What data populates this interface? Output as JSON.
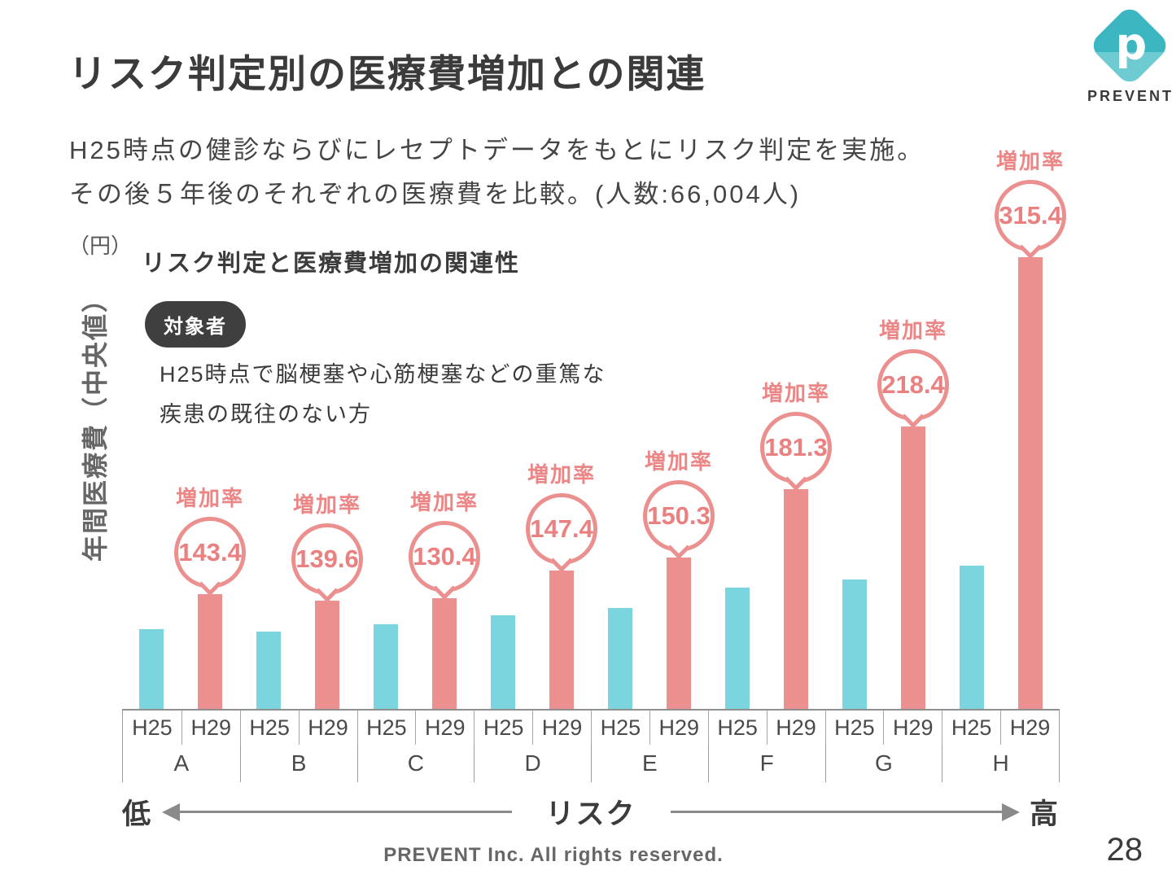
{
  "page": {
    "title": "リスク判定別の医療費増加との関連",
    "subtitle_line1": "H25時点の健診ならびにレセプトデータをもとにリスク判定を実施。",
    "subtitle_line2": "その後５年後のそれぞれの医療費を比較。(人数:66,004人)",
    "footer": "PREVENT Inc. All rights reserved.",
    "page_number": "28"
  },
  "logo": {
    "text": "PREVENT",
    "letter": "p",
    "teal_dark": "#3cb6c0",
    "teal_light": "#6ecbd2"
  },
  "chart_data": {
    "type": "bar",
    "title": "リスク判定と医療費増加の関連性",
    "unit_label": "（円）",
    "ylabel": "年間医療費（中央値）",
    "badge": "対象者",
    "note_line1": "H25時点で脳梗塞や心筋梗塞などの重篤な",
    "note_line2": "疾患の既往のない方",
    "rate_label": "増加率",
    "series_labels": [
      "H25",
      "H29"
    ],
    "series_colors": {
      "H25": "#7ad5de",
      "H29": "#ec8f8f"
    },
    "value_note": "y-axis unscaled (median annual medical cost, yen); h25_height is relative bar height in px, h29 = h25_height × rate_pct / 100",
    "groups": [
      {
        "name": "A",
        "h25_height": 98,
        "rate_pct": 143.4
      },
      {
        "name": "B",
        "h25_height": 95,
        "rate_pct": 139.6
      },
      {
        "name": "C",
        "h25_height": 104,
        "rate_pct": 130.4
      },
      {
        "name": "D",
        "h25_height": 115,
        "rate_pct": 147.4
      },
      {
        "name": "E",
        "h25_height": 124,
        "rate_pct": 150.3
      },
      {
        "name": "F",
        "h25_height": 149,
        "rate_pct": 181.3
      },
      {
        "name": "G",
        "h25_height": 159,
        "rate_pct": 218.4
      },
      {
        "name": "H",
        "h25_height": 176,
        "rate_pct": 315.4
      }
    ],
    "axis_low": "低",
    "axis_mid": "リスク",
    "axis_high": "高",
    "legend_position": "none",
    "grid": false
  }
}
